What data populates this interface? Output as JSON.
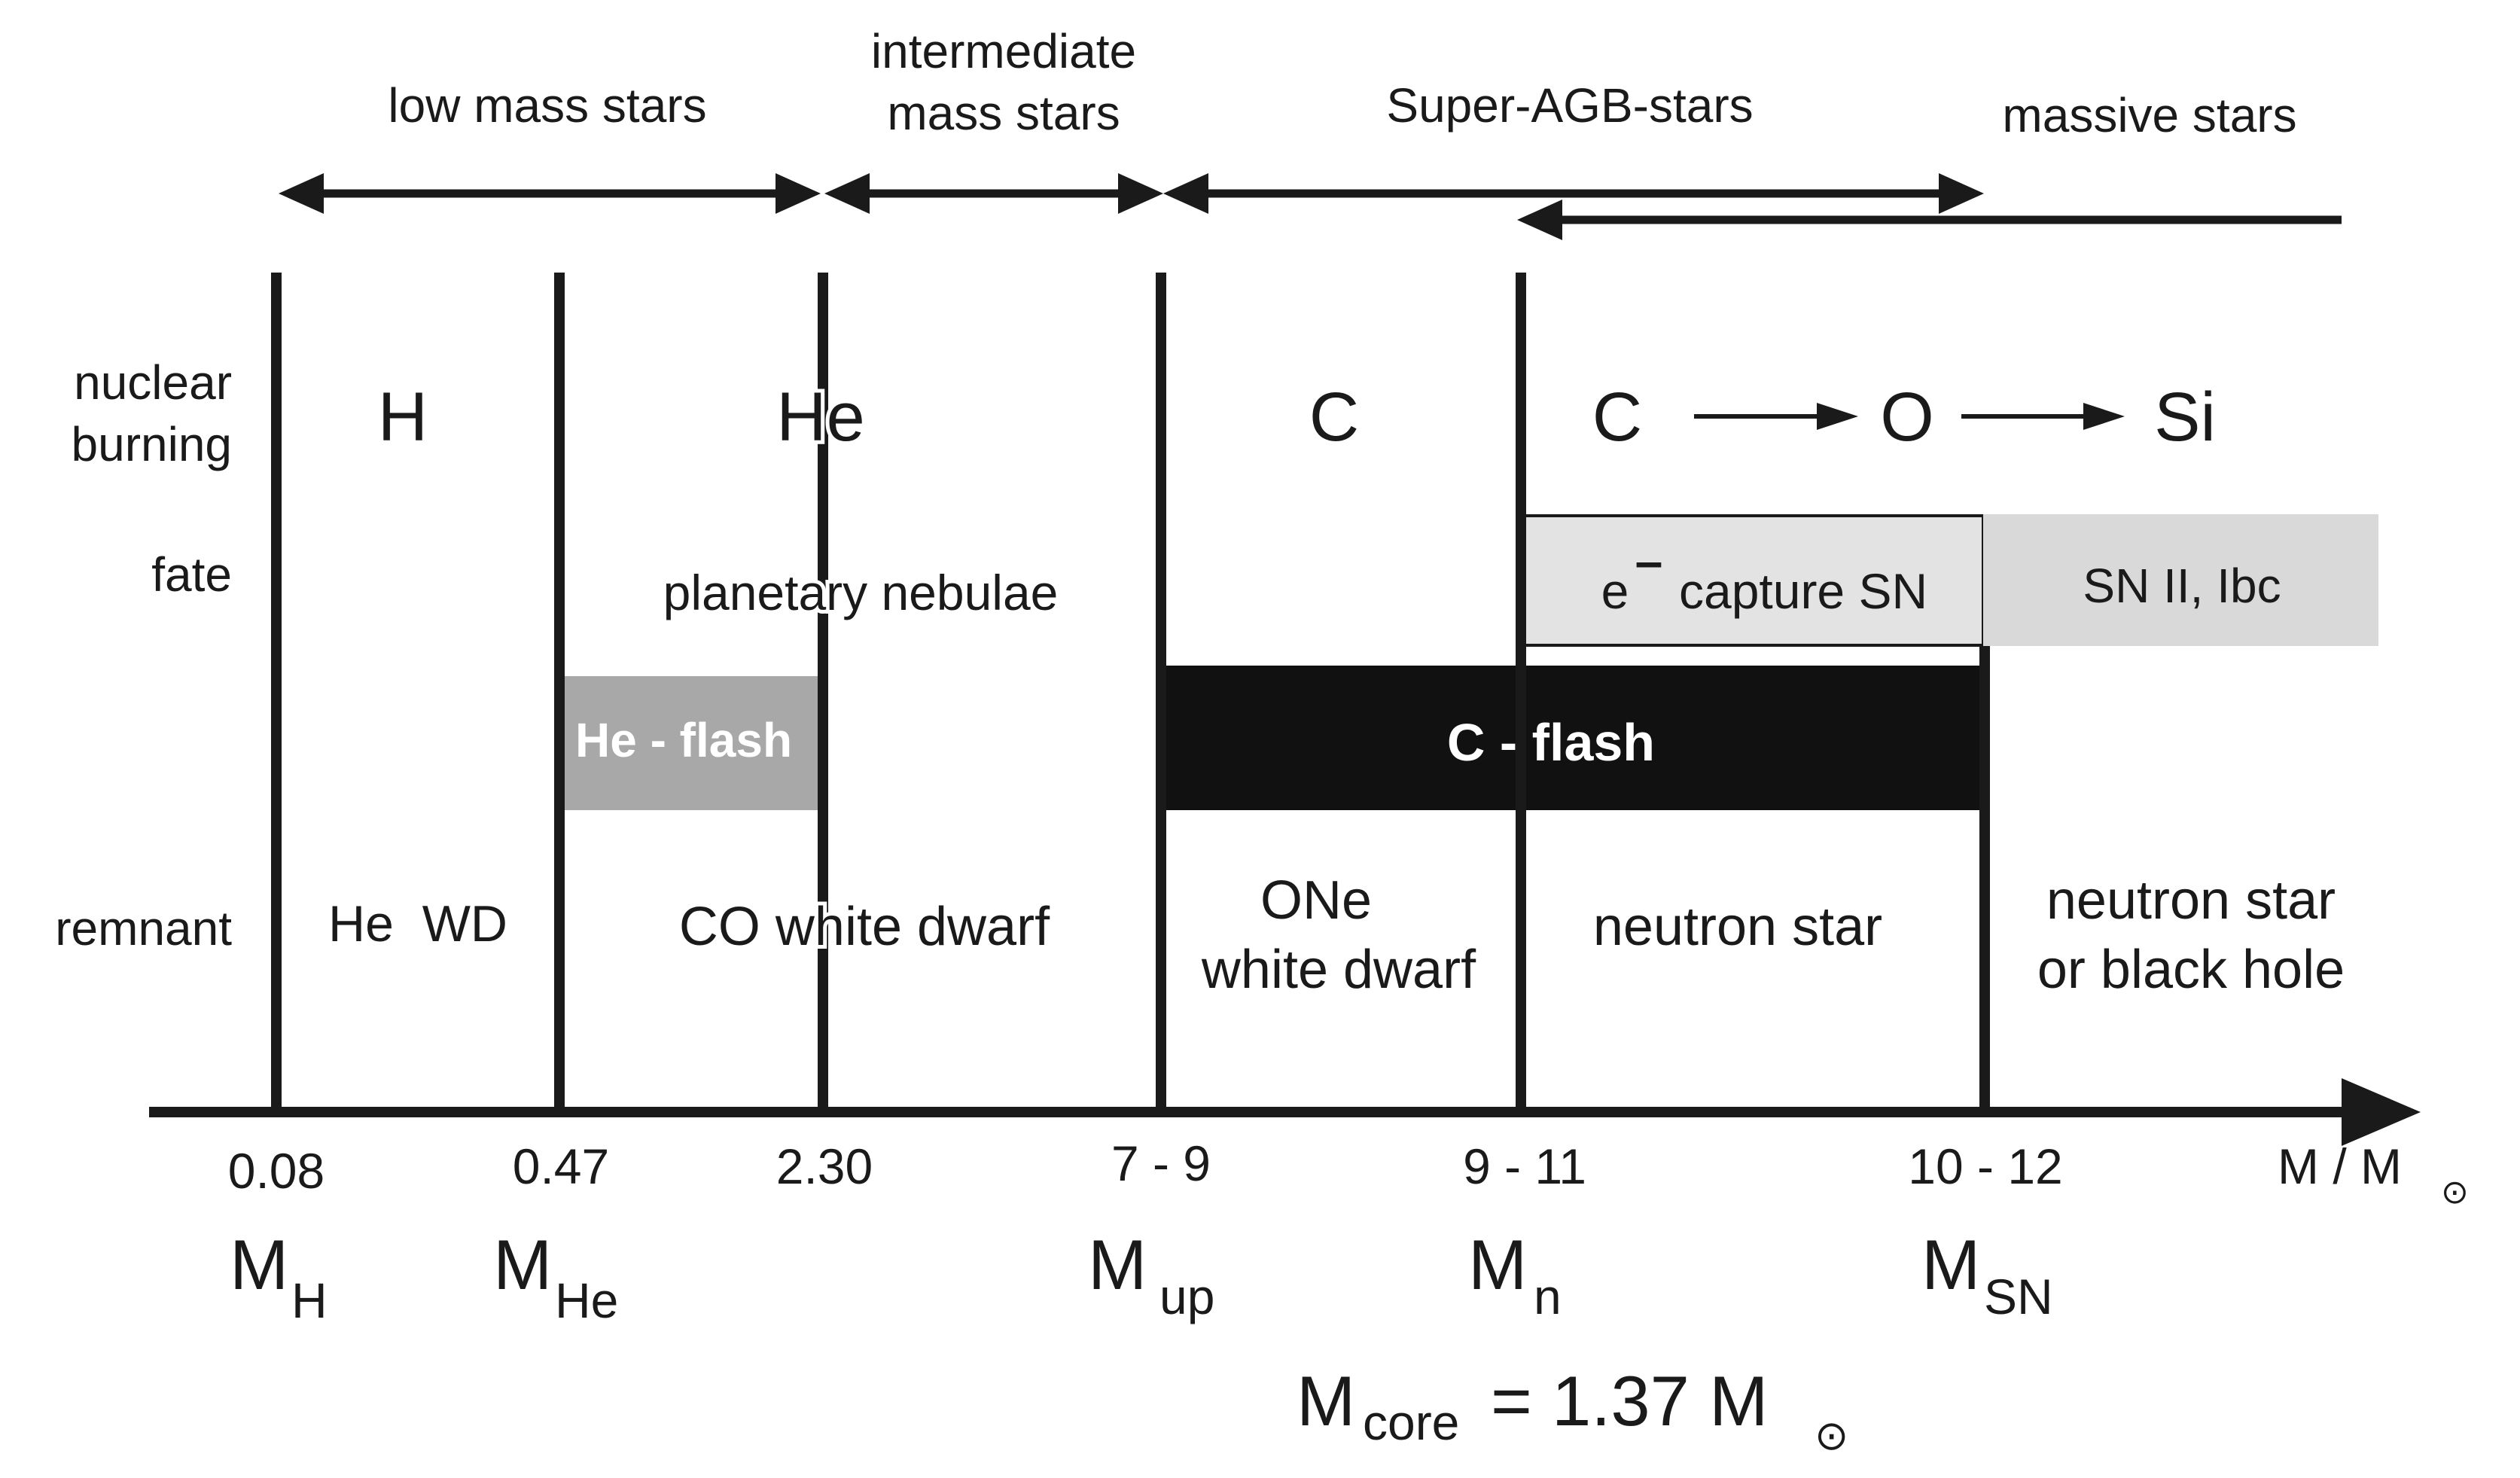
{
  "ranges": {
    "low_mass": "low mass stars",
    "intermediate_line1": "intermediate",
    "intermediate_line2": "mass stars",
    "super_agb": "Super-AGB-stars",
    "massive": "massive stars"
  },
  "row_labels": {
    "nuclear_line1": "nuclear",
    "nuclear_line2": "burning",
    "fate": "fate",
    "remnant": "remnant"
  },
  "burning": {
    "h": "H",
    "he": "He",
    "c": "C",
    "c2": "C",
    "o": "O",
    "si": "Si"
  },
  "fate": {
    "planetary_nebulae": "planetary nebulae",
    "he_flash": "He - flash",
    "c_flash": "C - flash",
    "e_capture_e": "e",
    "e_capture_minus": "–",
    "e_capture_rest": "capture SN",
    "sn_type": "SN II, Ibc"
  },
  "remnants": {
    "he_wd": "He  WD",
    "co_wd": "CO white dwarf",
    "one_line1": "ONe",
    "one_line2": "white dwarf",
    "neutron_star": "neutron star",
    "ns_bh_line1": "neutron star",
    "ns_bh_line2": "or black hole"
  },
  "axis": {
    "ticks": [
      "0.08",
      "0.47",
      "2.30",
      "7 - 9",
      "9 - 11",
      "10 - 12"
    ],
    "unit_m": "M / M",
    "sun_symbol": "⊙",
    "mass_labels": [
      {
        "base": "M",
        "sub": "H"
      },
      {
        "base": "M",
        "sub": "He"
      },
      {
        "base": "M",
        "sub": "up"
      },
      {
        "base": "M",
        "sub": "n"
      },
      {
        "base": "M",
        "sub": "SN"
      }
    ],
    "core_m": "M",
    "core_sub": "core",
    "core_eq": "= 1.37 M",
    "core_sun": "⊙"
  },
  "colors": {
    "line": "#1a1a1a",
    "he_flash_fill": "#a8a8a8",
    "c_flash_fill": "#111111",
    "e_capture_fill": "#e3e3e3",
    "sn_fill": "#d9d9d9"
  }
}
